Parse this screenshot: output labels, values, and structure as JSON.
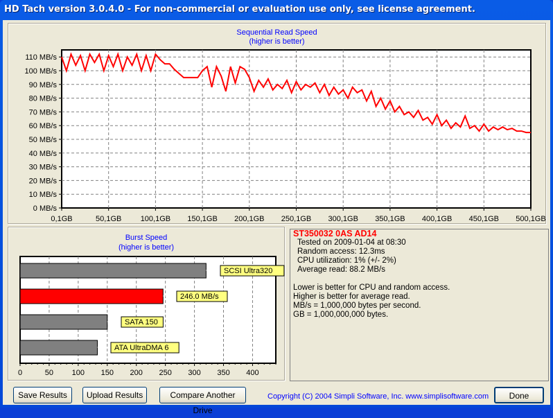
{
  "window": {
    "title": "HD Tach version 3.0.4.0  - For non-commercial or evaluation use only, see license agreement."
  },
  "chart_data": [
    {
      "type": "line",
      "title": "Sequential Read Speed",
      "subtitle": "(higher is better)",
      "xlim": [
        0.1,
        500.1
      ],
      "ylim": [
        0,
        115
      ],
      "grid": true,
      "x_tick_labels": [
        "0,1GB",
        "50,1GB",
        "100,1GB",
        "150,1GB",
        "200,1GB",
        "250,1GB",
        "300,1GB",
        "350,1GB",
        "400,1GB",
        "450,1GB",
        "500,1GB"
      ],
      "y_tick_labels": [
        "0 MB/s",
        "10 MB/s",
        "20 MB/s",
        "30 MB/s",
        "40 MB/s",
        "50 MB/s",
        "60 MB/s",
        "70 MB/s",
        "80 MB/s",
        "90 MB/s",
        "100 MB/s",
        "110 MB/s"
      ],
      "color": "#ff0000",
      "x": [
        0,
        5,
        10,
        15,
        20,
        25,
        30,
        35,
        40,
        45,
        50,
        55,
        60,
        65,
        70,
        75,
        80,
        85,
        90,
        95,
        100,
        105,
        110,
        115,
        120,
        125,
        130,
        135,
        140,
        145,
        150,
        155,
        160,
        165,
        170,
        175,
        180,
        185,
        190,
        195,
        200,
        205,
        210,
        215,
        220,
        225,
        230,
        235,
        240,
        245,
        250,
        255,
        260,
        265,
        270,
        275,
        280,
        285,
        290,
        295,
        300,
        305,
        310,
        315,
        320,
        325,
        330,
        335,
        340,
        345,
        350,
        355,
        360,
        365,
        370,
        375,
        380,
        385,
        390,
        395,
        400,
        405,
        410,
        415,
        420,
        425,
        430,
        435,
        440,
        445,
        450,
        455,
        460,
        465,
        470,
        475,
        480,
        485,
        490,
        495,
        500
      ],
      "y": [
        110,
        100,
        112,
        104,
        111,
        100,
        112,
        106,
        112,
        100,
        111,
        103,
        112,
        100,
        110,
        104,
        112,
        100,
        111,
        100,
        112,
        108,
        105,
        105,
        101,
        98,
        95,
        95,
        95,
        95,
        100,
        103,
        88,
        103,
        96,
        85,
        103,
        91,
        103,
        101,
        95,
        85,
        93,
        88,
        94,
        86,
        90,
        87,
        93,
        84,
        92,
        86,
        90,
        88,
        91,
        84,
        90,
        82,
        88,
        83,
        86,
        80,
        88,
        84,
        86,
        78,
        85,
        74,
        80,
        72,
        78,
        70,
        74,
        68,
        70,
        66,
        71,
        64,
        66,
        61,
        68,
        60,
        64,
        58,
        62,
        59,
        67,
        58,
        60,
        56,
        61,
        56,
        59,
        57,
        59,
        57,
        58,
        56,
        56,
        55,
        55
      ]
    },
    {
      "type": "bar",
      "orientation": "horizontal",
      "title": "Burst Speed",
      "subtitle": "(higher is better)",
      "xlim": [
        0,
        440
      ],
      "x_tick_labels": [
        "0",
        "50",
        "100",
        "150",
        "200",
        "250",
        "300",
        "350",
        "400"
      ],
      "grid": true,
      "bars": [
        {
          "label": "SCSI Ultra320",
          "value": 320,
          "color": "#808080"
        },
        {
          "label": "246.0 MB/s",
          "value": 246,
          "color": "#ff0000"
        },
        {
          "label": "SATA 150",
          "value": 150,
          "color": "#808080"
        },
        {
          "label": "ATA UltraDMA 6",
          "value": 133,
          "color": "#808080"
        }
      ]
    }
  ],
  "info": {
    "drive": "ST350032 0AS AD14",
    "lines": [
      "Tested on 2009-01-04 at 08:30",
      "Random access: 12.3ms",
      "CPU utilization: 1% (+/- 2%)",
      "Average read: 88.2 MB/s"
    ],
    "notes": [
      "Lower is better for CPU and random access.",
      "Higher is better for average read.",
      "MB/s = 1,000,000 bytes per second.",
      "GB = 1,000,000,000 bytes."
    ]
  },
  "buttons": {
    "save": "Save Results",
    "upload": "Upload Results",
    "compare": "Compare Another Drive",
    "done": "Done"
  },
  "copyright": "Copyright (C) 2004 Simpli Software, Inc. www.simplisoftware.com"
}
